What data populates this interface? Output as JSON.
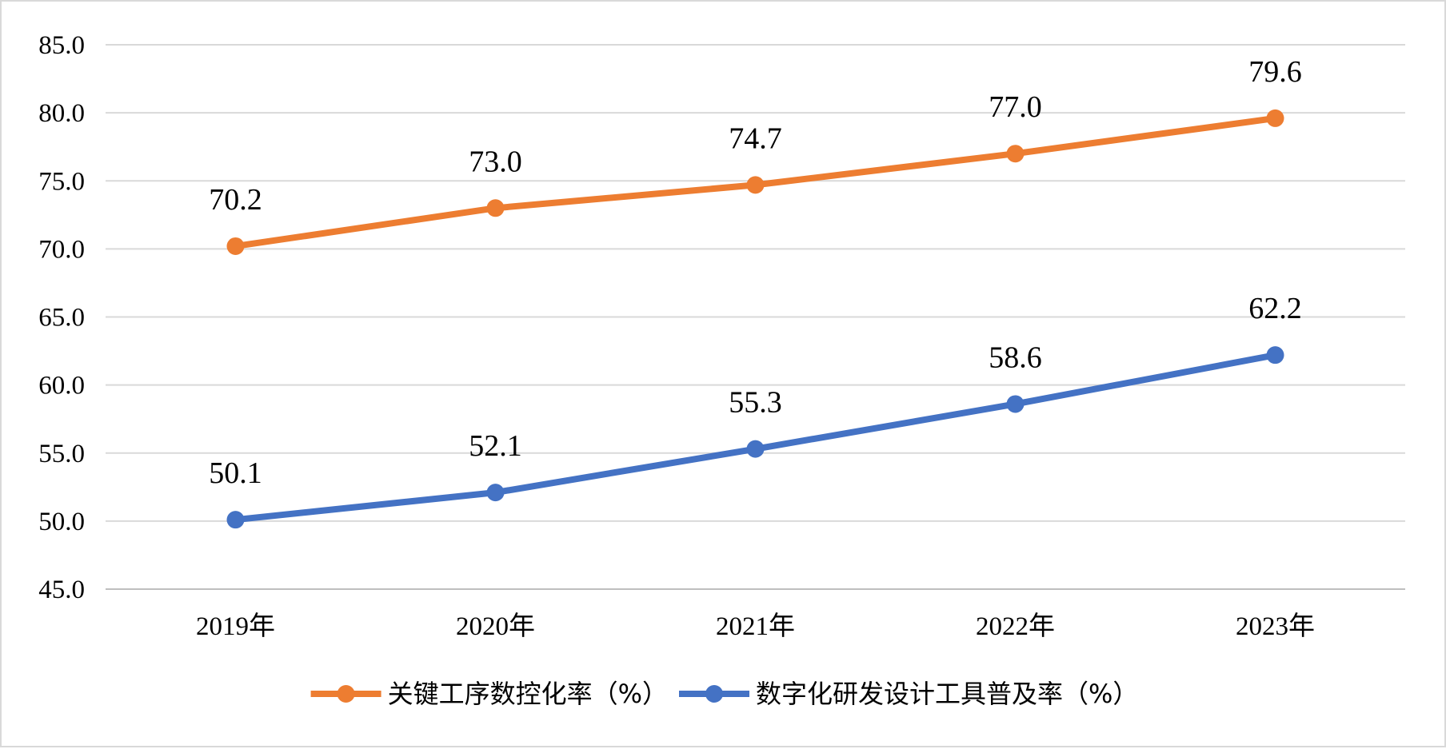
{
  "chart_data": {
    "type": "line",
    "categories": [
      "2019年",
      "2020年",
      "2021年",
      "2022年",
      "2023年"
    ],
    "series": [
      {
        "name": "关键工序数控化率（%）",
        "color": "#ED7D31",
        "values": [
          70.2,
          73.0,
          74.7,
          77.0,
          79.6
        ]
      },
      {
        "name": "数字化研发设计工具普及率（%）",
        "color": "#4472C4",
        "values": [
          50.1,
          52.1,
          55.3,
          58.6,
          62.2
        ]
      }
    ],
    "ylim": [
      45,
      85
    ],
    "yticks": [
      45,
      50,
      55,
      60,
      65,
      70,
      75,
      80,
      85
    ],
    "grid": true,
    "legend_position": "bottom",
    "data_labels": true
  }
}
